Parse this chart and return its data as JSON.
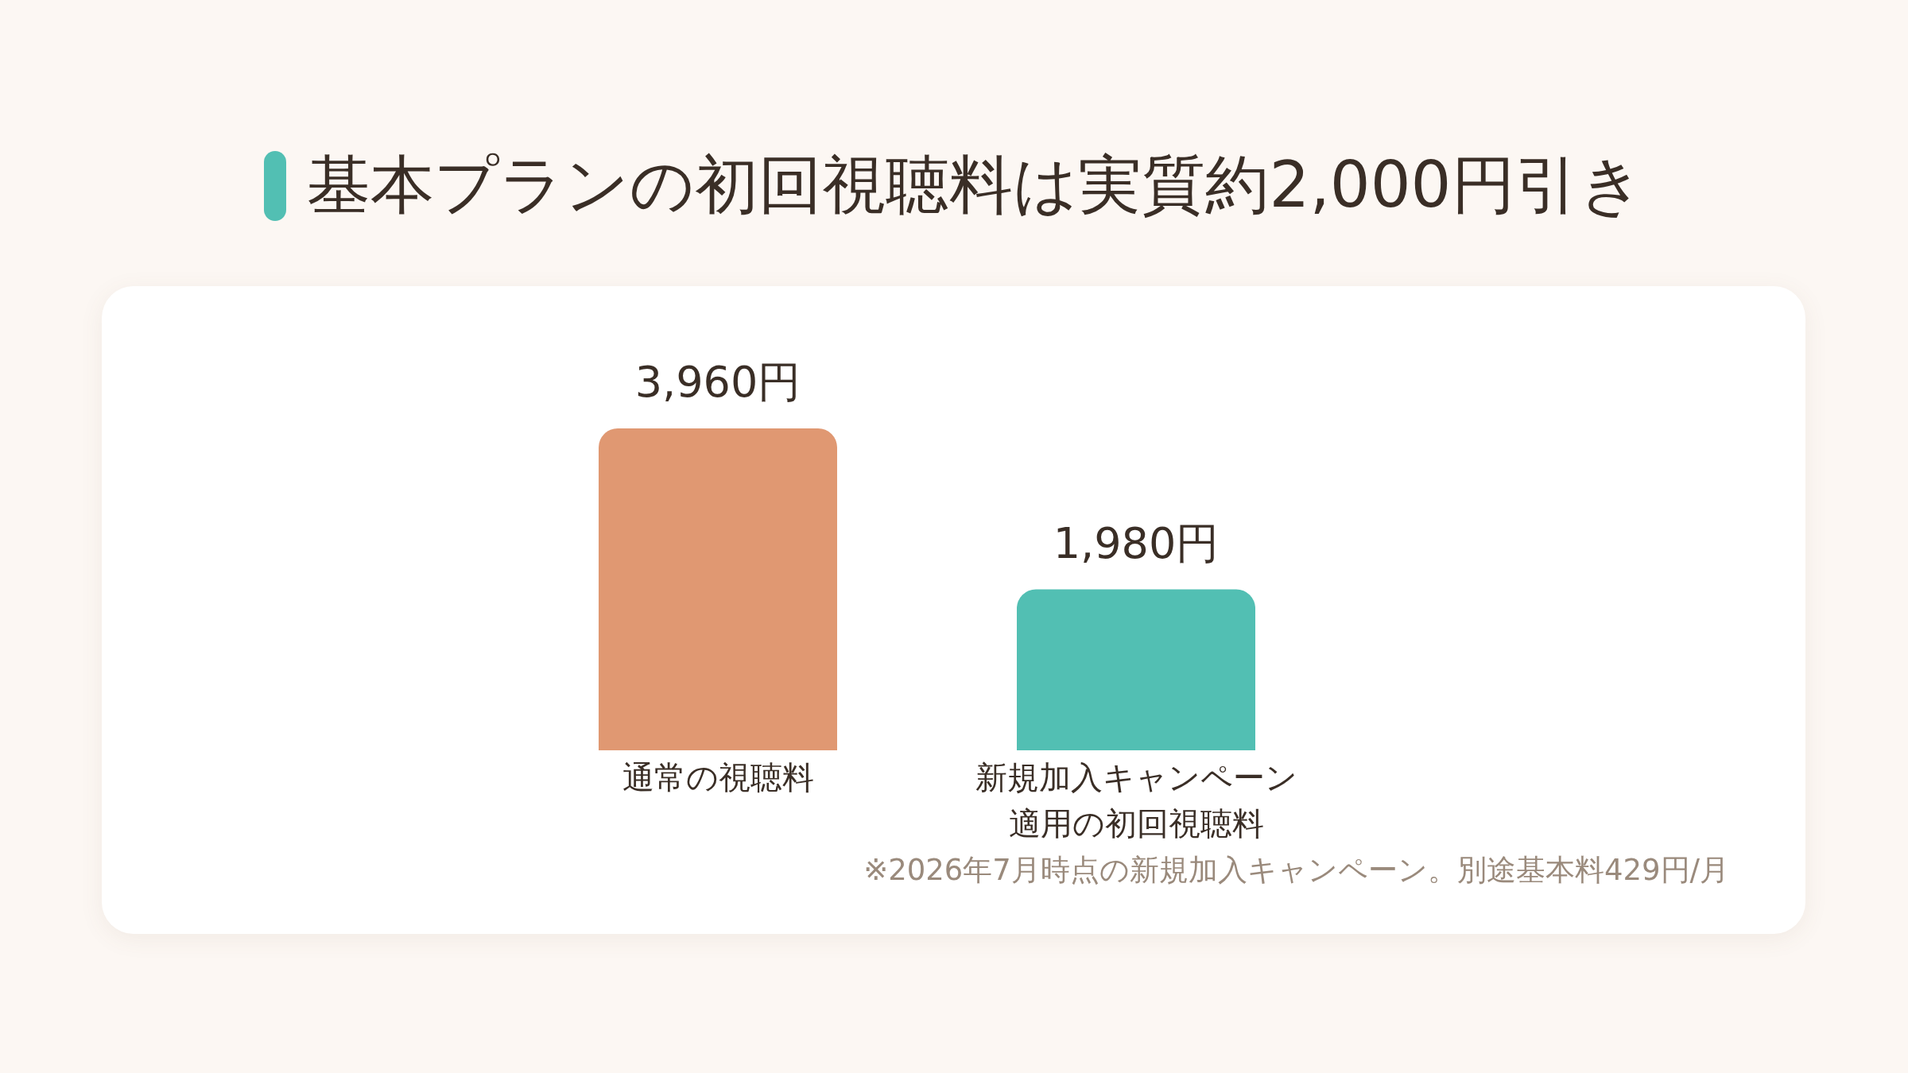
{
  "chart_data": {
    "type": "bar",
    "title": "基本プランの初回視聴料は実質約2,000円引き",
    "categories": [
      "通常の視聴料",
      "新規加入キャンペーン適用の初回視聴料"
    ],
    "values": [
      3960,
      1980
    ],
    "colors": [
      "#e09872",
      "#52bfb3"
    ],
    "value_labels": [
      "3,960円",
      "1,980円"
    ],
    "annotations": [
      "※2026年7月時点の新規加入キャンペーン。別途基本料429円/月"
    ]
  }
}
